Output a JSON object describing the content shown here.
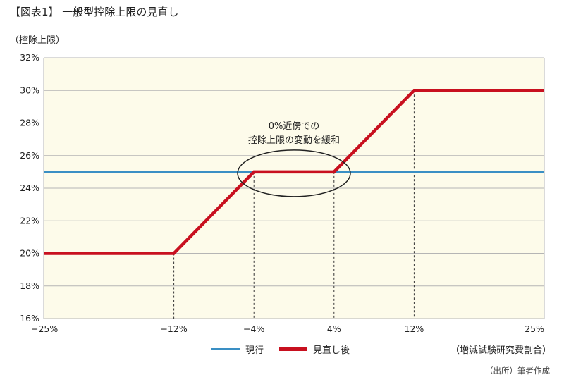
{
  "title": "【図表1】 一般型控除上限の見直し",
  "source": "（出所）筆者作成",
  "colors": {
    "background": "#fdfbea",
    "grid": "#b5b5b5",
    "current": "#3a8fc4",
    "revised": "#c8101f"
  },
  "chart_data": {
    "type": "line",
    "ylabel": "（控除上限）",
    "xlabel": "（増減試験研究費割合）",
    "xlim": [
      -25,
      25
    ],
    "ylim": [
      16,
      32
    ],
    "yticks": [
      "32%",
      "30%",
      "28%",
      "26%",
      "24%",
      "22%",
      "20%",
      "18%",
      "16%"
    ],
    "ytick_values": [
      32,
      30,
      28,
      26,
      24,
      22,
      20,
      18,
      16
    ],
    "xticks": [
      "−25%",
      "−12%",
      "−4%",
      "4%",
      "12%",
      "25%"
    ],
    "xtick_values": [
      -25,
      -12,
      -4,
      4,
      12,
      25
    ],
    "grid": true,
    "legend_position": "bottom",
    "series": [
      {
        "name": "現行",
        "x": [
          -25,
          25
        ],
        "y": [
          25,
          25
        ]
      },
      {
        "name": "見直し後",
        "x": [
          -25,
          -12,
          -4,
          4,
          12,
          25
        ],
        "y": [
          20,
          20,
          25,
          25,
          30,
          30
        ]
      }
    ],
    "dashed_guides_x": [
      -12,
      -4,
      4,
      12
    ],
    "annotation": {
      "line1": "0%近傍での",
      "line2": "控除上限の変動を緩和"
    }
  }
}
